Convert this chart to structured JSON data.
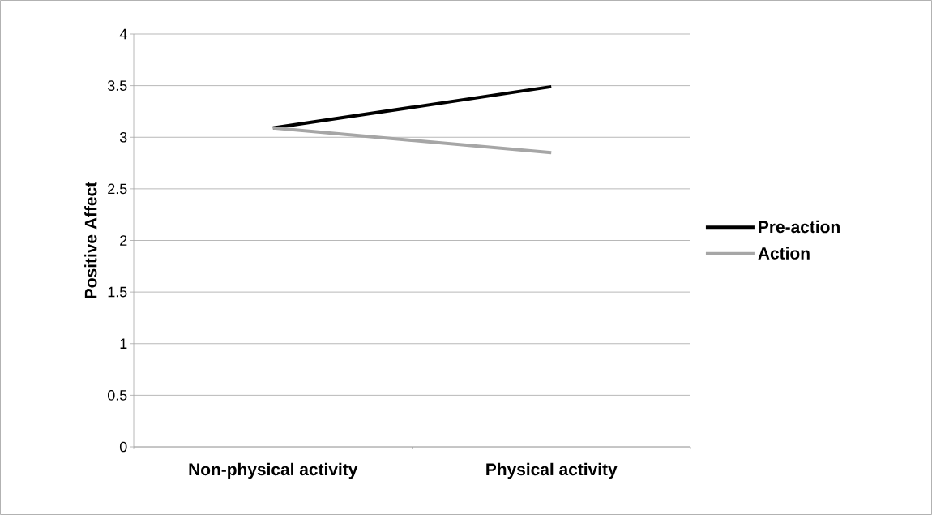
{
  "chart_data": {
    "type": "line",
    "ylabel": "Positive Affect",
    "categories": [
      "Non-physical activity",
      "Physical activity"
    ],
    "series": [
      {
        "name": "Pre-action",
        "color": "#000000",
        "values": [
          3.09,
          3.49
        ]
      },
      {
        "name": "Action",
        "color": "#a6a6a6",
        "values": [
          3.09,
          2.85
        ]
      }
    ],
    "ylim": [
      0,
      4
    ],
    "yticks": [
      0,
      0.5,
      1,
      1.5,
      2,
      2.5,
      3,
      3.5,
      4
    ],
    "grid": "y",
    "legend": "right",
    "marker": "none",
    "line_style": "solid"
  }
}
